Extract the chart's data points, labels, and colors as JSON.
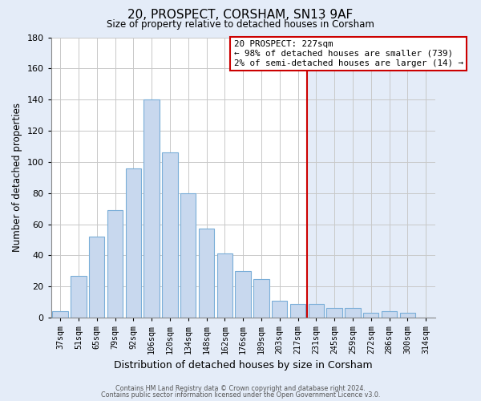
{
  "title": "20, PROSPECT, CORSHAM, SN13 9AF",
  "subtitle": "Size of property relative to detached houses in Corsham",
  "xlabel": "Distribution of detached houses by size in Corsham",
  "ylabel": "Number of detached properties",
  "bar_labels": [
    "37sqm",
    "51sqm",
    "65sqm",
    "79sqm",
    "92sqm",
    "106sqm",
    "120sqm",
    "134sqm",
    "148sqm",
    "162sqm",
    "176sqm",
    "189sqm",
    "203sqm",
    "217sqm",
    "231sqm",
    "245sqm",
    "259sqm",
    "272sqm",
    "286sqm",
    "300sqm",
    "314sqm"
  ],
  "bar_values": [
    4,
    27,
    52,
    69,
    96,
    140,
    106,
    80,
    57,
    41,
    30,
    25,
    11,
    9,
    9,
    6,
    6,
    3,
    4,
    3,
    0
  ],
  "bar_color": "#c8d8ee",
  "bar_edge_color": "#7aaed8",
  "ylim": [
    0,
    180
  ],
  "yticks": [
    0,
    20,
    40,
    60,
    80,
    100,
    120,
    140,
    160,
    180
  ],
  "grid_color": "#c8c8c8",
  "bg_color_left": "#ffffff",
  "bg_color_right": "#e4ecf8",
  "bg_color_fig": "#e4ecf8",
  "vline_x_index": 14,
  "vline_color": "#cc0000",
  "annotation_title": "20 PROSPECT: 227sqm",
  "annotation_line1": "← 98% of detached houses are smaller (739)",
  "annotation_line2": "2% of semi-detached houses are larger (14) →",
  "annotation_box_color": "#ffffff",
  "annotation_border_color": "#cc0000",
  "footer_line1": "Contains HM Land Registry data © Crown copyright and database right 2024.",
  "footer_line2": "Contains public sector information licensed under the Open Government Licence v3.0."
}
